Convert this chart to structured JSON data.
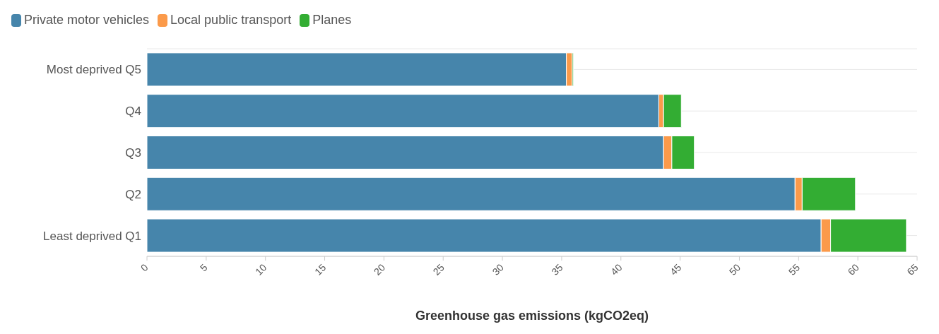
{
  "chart_data": {
    "type": "bar",
    "orientation": "horizontal",
    "stacked": true,
    "xlabel": "Greenhouse gas emissions (kgCO2eq)",
    "categories": [
      "Most deprived Q5",
      "Q4",
      "Q3",
      "Q2",
      "Least deprived Q1"
    ],
    "series": [
      {
        "name": "Private motor vehicles",
        "color": "#4685ab",
        "values": [
          35.4,
          43.2,
          43.6,
          54.7,
          56.9
        ]
      },
      {
        "name": "Local public transport",
        "color": "#fb9a4a",
        "values": [
          0.5,
          0.4,
          0.7,
          0.6,
          0.8
        ]
      },
      {
        "name": "Planes",
        "color": "#33ad33",
        "values": [
          0.1,
          1.5,
          1.9,
          4.5,
          6.4
        ]
      }
    ],
    "xlim": [
      0,
      65
    ],
    "xticks": [
      0,
      5,
      10,
      15,
      20,
      25,
      30,
      35,
      40,
      45,
      50,
      55,
      60,
      65
    ],
    "grid": "y",
    "legend": "top left"
  }
}
